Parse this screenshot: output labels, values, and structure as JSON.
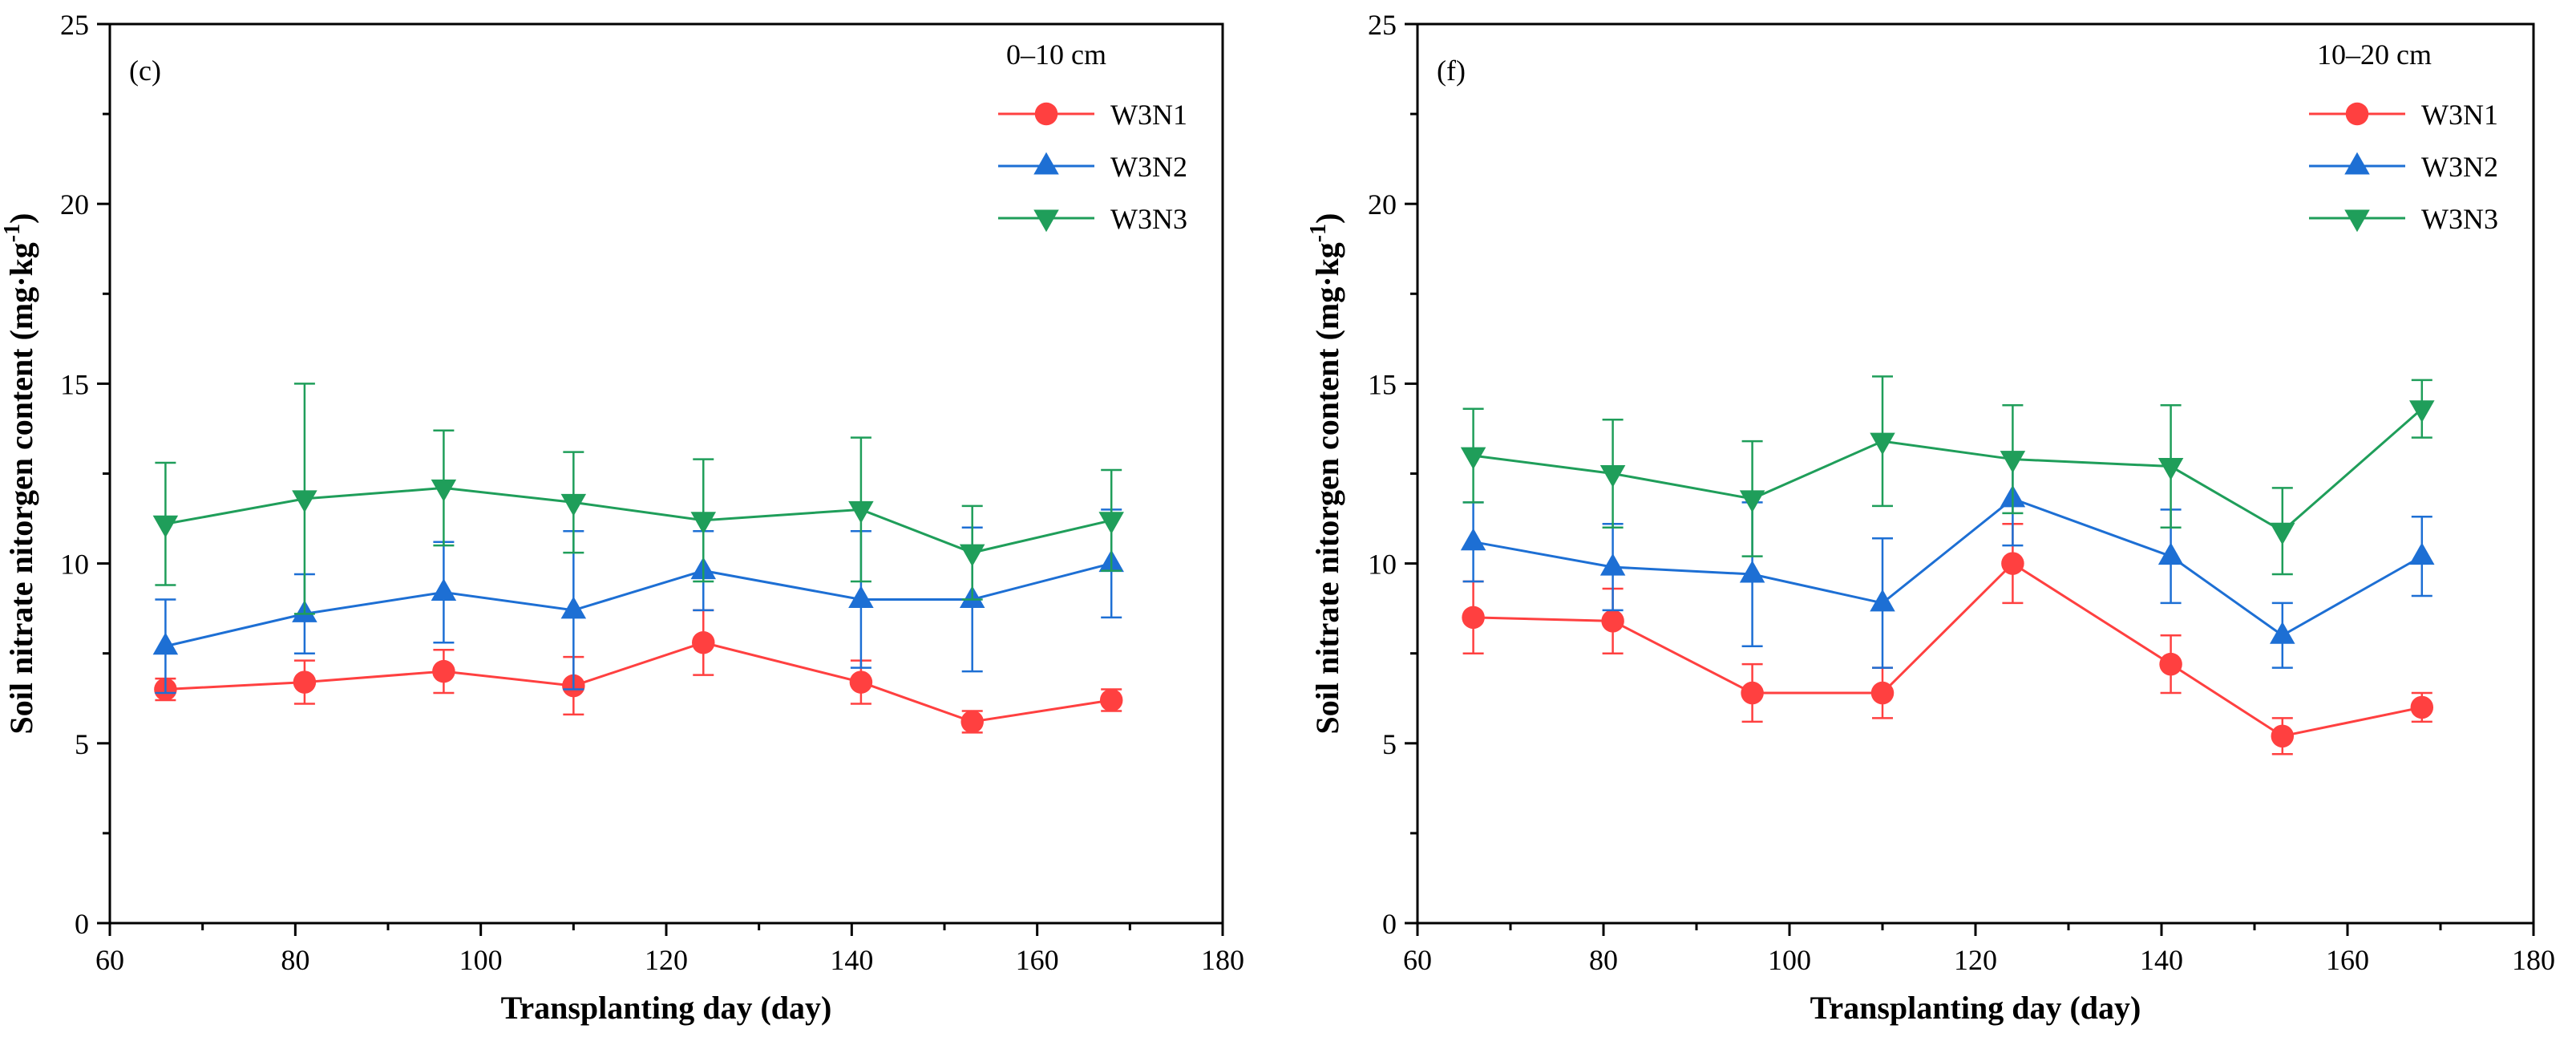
{
  "chart_data": [
    {
      "type": "line",
      "panel_label": "(c)",
      "depth_label": "0–10 cm",
      "xlabel": "Transplanting day (day)",
      "ylabel": "Soil nitrate nitorgen content (mg·kg",
      "ylabel_sup": "-1",
      "ylabel_close": ")",
      "xlim": [
        60,
        180
      ],
      "ylim": [
        0,
        25
      ],
      "xticks": [
        60,
        80,
        100,
        120,
        140,
        160,
        180
      ],
      "yticks": [
        0,
        5,
        10,
        15,
        20,
        25
      ],
      "x": [
        66,
        81,
        96,
        110,
        124,
        141,
        153,
        168
      ],
      "legend_position": "top-right",
      "series": [
        {
          "name": "W3N1",
          "color": "#ff4040",
          "marker": "circle",
          "values": [
            6.5,
            6.7,
            7.0,
            6.6,
            7.8,
            6.7,
            5.6,
            6.2
          ],
          "errors": [
            0.3,
            0.6,
            0.6,
            0.8,
            0.9,
            0.6,
            0.3,
            0.3
          ]
        },
        {
          "name": "W3N2",
          "color": "#1d6fd4",
          "marker": "triangle-up",
          "values": [
            7.7,
            8.6,
            9.2,
            8.7,
            9.8,
            9.0,
            9.0,
            10.0
          ],
          "errors": [
            1.3,
            1.1,
            1.4,
            2.2,
            1.1,
            1.9,
            2.0,
            1.5
          ]
        },
        {
          "name": "W3N3",
          "color": "#1f9e5a",
          "marker": "triangle-down",
          "values": [
            11.1,
            11.8,
            12.1,
            11.7,
            11.2,
            11.5,
            10.3,
            11.2
          ],
          "errors": [
            1.7,
            3.2,
            1.6,
            1.4,
            1.7,
            2.0,
            1.3,
            1.4
          ]
        }
      ]
    },
    {
      "type": "line",
      "panel_label": "(f)",
      "depth_label": "10–20 cm",
      "xlabel": "Transplanting day (day)",
      "ylabel": "Soil nitrate nitorgen content (mg·kg",
      "ylabel_sup": "-1",
      "ylabel_close": ")",
      "xlim": [
        60,
        180
      ],
      "ylim": [
        0,
        25
      ],
      "xticks": [
        60,
        80,
        100,
        120,
        140,
        160,
        180
      ],
      "yticks": [
        0,
        5,
        10,
        15,
        20,
        25
      ],
      "x": [
        66,
        81,
        96,
        110,
        124,
        141,
        153,
        168
      ],
      "legend_position": "top-right",
      "series": [
        {
          "name": "W3N1",
          "color": "#ff4040",
          "marker": "circle",
          "values": [
            8.5,
            8.4,
            6.4,
            6.4,
            10.0,
            7.2,
            5.2,
            6.0
          ],
          "errors": [
            1.0,
            0.9,
            0.8,
            0.7,
            1.1,
            0.8,
            0.5,
            0.4
          ]
        },
        {
          "name": "W3N2",
          "color": "#1d6fd4",
          "marker": "triangle-up",
          "values": [
            10.6,
            9.9,
            9.7,
            8.9,
            11.8,
            10.2,
            8.0,
            10.2
          ],
          "errors": [
            1.1,
            1.2,
            2.0,
            1.8,
            1.3,
            1.3,
            0.9,
            1.1
          ]
        },
        {
          "name": "W3N3",
          "color": "#1f9e5a",
          "marker": "triangle-down",
          "values": [
            13.0,
            12.5,
            11.8,
            13.4,
            12.9,
            12.7,
            10.9,
            14.3
          ],
          "errors": [
            1.3,
            1.5,
            1.6,
            1.8,
            1.5,
            1.7,
            1.2,
            0.8
          ]
        }
      ]
    }
  ]
}
